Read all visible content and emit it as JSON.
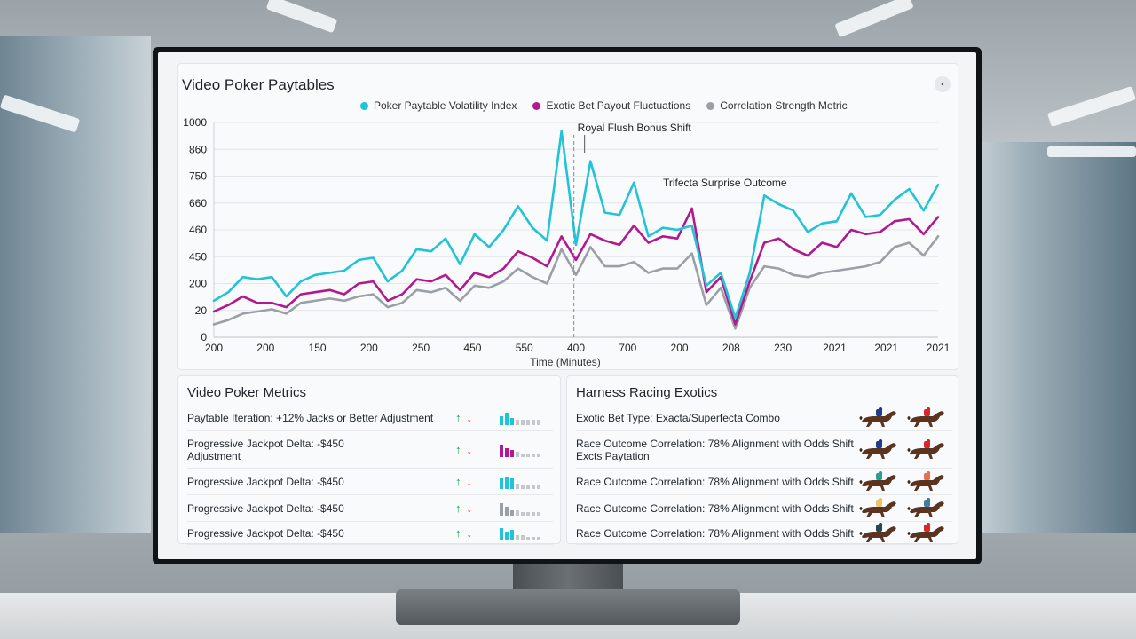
{
  "chart": {
    "title": "Video Poker Paytables",
    "collapse_icon": "‹",
    "legend": [
      {
        "label": "Poker Paytable Volatility Index",
        "color": "#22c3d6"
      },
      {
        "label": "Exotic Bet Payout Fluctuations",
        "color": "#b0198f"
      },
      {
        "label": "Correlation Strength Metric",
        "color": "#9aa0a6"
      }
    ],
    "annotations": {
      "royal_flush": "Royal Flush Bonus Shift",
      "trifecta": "Trifecta Surprise Outcome"
    },
    "xlabel": "Time (Minutes)"
  },
  "chart_data": {
    "type": "line",
    "y_tick_labels": [
      "1000",
      "860",
      "750",
      "660",
      "460",
      "450",
      "200",
      "20",
      "0"
    ],
    "x_tick_labels": [
      "200",
      "200",
      "150",
      "200",
      "250",
      "450",
      "550",
      "400",
      "700",
      "200",
      "208",
      "230",
      "2021",
      "2021",
      "2021"
    ],
    "series": [
      {
        "name": "Poker Paytable Volatility Index",
        "color": "#22c3d6",
        "values": [
          170,
          210,
          280,
          270,
          280,
          190,
          260,
          290,
          300,
          310,
          360,
          370,
          260,
          310,
          410,
          400,
          460,
          340,
          480,
          420,
          500,
          610,
          510,
          450,
          960,
          430,
          820,
          580,
          570,
          720,
          470,
          510,
          500,
          520,
          240,
          300,
          90,
          300,
          660,
          620,
          590,
          490,
          530,
          540,
          670,
          560,
          570,
          640,
          690,
          590,
          710
        ]
      },
      {
        "name": "Exotic Bet Payout Fluctuations",
        "color": "#b0198f",
        "values": [
          120,
          150,
          190,
          160,
          160,
          140,
          200,
          210,
          220,
          200,
          250,
          260,
          170,
          200,
          270,
          260,
          290,
          220,
          300,
          280,
          320,
          400,
          370,
          330,
          470,
          360,
          480,
          450,
          430,
          520,
          440,
          470,
          460,
          600,
          210,
          280,
          60,
          260,
          440,
          460,
          410,
          380,
          440,
          420,
          500,
          480,
          490,
          540,
          550,
          480,
          560
        ]
      },
      {
        "name": "Correlation Strength Metric",
        "color": "#9aa0a6",
        "values": [
          60,
          80,
          110,
          120,
          130,
          110,
          160,
          170,
          180,
          170,
          190,
          200,
          140,
          160,
          220,
          210,
          230,
          170,
          240,
          230,
          260,
          320,
          280,
          250,
          410,
          290,
          420,
          330,
          330,
          350,
          300,
          320,
          320,
          390,
          150,
          230,
          40,
          230,
          330,
          320,
          290,
          280,
          300,
          310,
          320,
          330,
          350,
          420,
          440,
          380,
          470
        ]
      }
    ]
  },
  "metrics": {
    "title": "Video Poker Metrics",
    "rows": [
      {
        "text": "Paytable Iteration: +12% Jacks or Better Adjustment",
        "bar_color": "#22c3d6"
      },
      {
        "text": "Progressive Jackpot Delta: -$450\nAdjustment",
        "bar_color": "#b0198f"
      },
      {
        "text": "Progressive Jackpot Delta: -$450",
        "bar_color": "#22c3d6"
      },
      {
        "text": "Progressive Jackpot Delta: -$450",
        "bar_color": "#9aa0a6"
      },
      {
        "text": "Progressive Jackpot Delta: -$450",
        "bar_color": "#22c3d6"
      }
    ],
    "up_icon": "↑",
    "down_icon": "↓"
  },
  "exotics": {
    "title": "Harness Racing Exotics",
    "rows": [
      {
        "text": "Exotic Bet Type: Exacta/Superfecta Combo",
        "jockeys": [
          "#1f3a8a",
          "#d62828"
        ]
      },
      {
        "text": "Race Outcome Correlation: 78% Alignment with Odds Shift\nExcts Paytation",
        "jockeys": [
          "#1f3a8a",
          "#d62828"
        ]
      },
      {
        "text": "Race Outcome Correlation: 78% Alignment with Odds Shift",
        "jockeys": [
          "#2a9d8f",
          "#e76f51"
        ]
      },
      {
        "text": "Race Outcome Correlation: 78% Alignment with Odds Shift",
        "jockeys": [
          "#e9c46a",
          "#457b9d"
        ]
      },
      {
        "text": "Race Outcome Correlation: 78% Alignment with Odds Shift",
        "jockeys": [
          "#264653",
          "#d62828"
        ]
      }
    ]
  }
}
